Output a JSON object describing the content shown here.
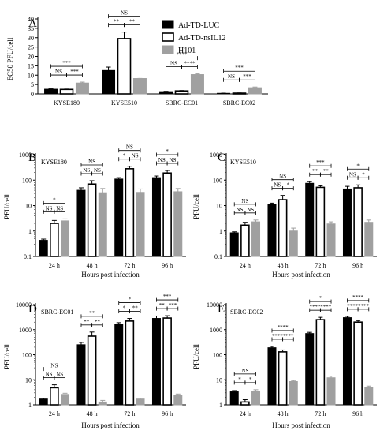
{
  "legend": [
    {
      "name": "Ad-TD-LUC",
      "color": "#000000"
    },
    {
      "name": "Ad-TD-nsIL12",
      "color": "#ffffff"
    },
    {
      "name": "H101",
      "color": "#a0a0a0"
    }
  ],
  "chart_data": [
    {
      "panel": "A",
      "type": "bar",
      "scale": "linear",
      "ylabel": "EC50 PFU/cell",
      "xlabel": "",
      "ylim": [
        0,
        40
      ],
      "yticks": [
        "0",
        "5",
        "10",
        "15",
        "20",
        "25",
        "30",
        "35",
        "40"
      ],
      "categories": [
        "KYSE180",
        "KYSE510",
        "SBRC-EC01",
        "SBRC-EC02"
      ],
      "series": [
        {
          "name": "Ad-TD-LUC",
          "values": [
            2.5,
            12.5,
            1.2,
            0.3
          ],
          "errors": [
            0.2,
            1.8,
            0.2,
            0.1
          ]
        },
        {
          "name": "Ad-TD-nsIL12",
          "values": [
            2.4,
            29.5,
            1.6,
            0.4
          ],
          "errors": [
            0.2,
            3.5,
            0.2,
            0.1
          ]
        },
        {
          "name": "H101",
          "values": [
            5.8,
            8.2,
            10.3,
            3.3
          ],
          "errors": [
            0.5,
            0.8,
            0.4,
            0.4
          ]
        }
      ],
      "sig_labels": [
        "***",
        "NS",
        "***",
        "NS",
        "**",
        "**",
        "****",
        "NS",
        "****",
        "***",
        "NS",
        "***"
      ]
    },
    {
      "panel": "B",
      "type": "bar",
      "scale": "log",
      "inset_title": "KYSE180",
      "ylabel": "PFU/cell",
      "xlabel": "Hours post infection",
      "ylim": [
        0.1,
        1000
      ],
      "yticks": [
        "0.1",
        "1",
        "10",
        "100",
        "1000"
      ],
      "categories": [
        "24 h",
        "48 h",
        "72 h",
        "96 h"
      ],
      "series": [
        {
          "name": "Ad-TD-LUC",
          "values": [
            0.43,
            40,
            110,
            125
          ],
          "errors": [
            0.05,
            10,
            15,
            20
          ]
        },
        {
          "name": "Ad-TD-nsIL12",
          "values": [
            2,
            70,
            280,
            190
          ],
          "errors": [
            0.6,
            25,
            70,
            50
          ]
        },
        {
          "name": "H101",
          "values": [
            2.5,
            32,
            33,
            35
          ],
          "errors": [
            0.5,
            15,
            12,
            12
          ]
        }
      ],
      "sig_labels": [
        "*",
        "NS",
        "NS",
        "NS",
        "NS",
        "NS",
        "NS",
        "*",
        "NS",
        "*",
        "NS",
        "NS"
      ]
    },
    {
      "panel": "C",
      "type": "bar",
      "scale": "log",
      "inset_title": "KYSE510",
      "ylabel": "PFU/cell",
      "xlabel": "Hours post infection",
      "ylim": [
        0.1,
        1000
      ],
      "yticks": [
        "0.1",
        "1",
        "10",
        "100",
        "1000"
      ],
      "categories": [
        "24 h",
        "48 h",
        "72 h",
        "96 h"
      ],
      "series": [
        {
          "name": "Ad-TD-LUC",
          "values": [
            0.85,
            11,
            75,
            45
          ],
          "errors": [
            0.08,
            1.5,
            12,
            12
          ]
        },
        {
          "name": "Ad-TD-nsIL12",
          "values": [
            1.7,
            17,
            52,
            50
          ],
          "errors": [
            0.5,
            8,
            8,
            15
          ]
        },
        {
          "name": "H101",
          "values": [
            2.3,
            1.0,
            1.9,
            2.2
          ],
          "errors": [
            0.4,
            0.3,
            0.4,
            0.5
          ]
        }
      ],
      "sig_labels": [
        "NS",
        "NS",
        "NS",
        "NS",
        "NS",
        "*",
        "***",
        "**",
        "**",
        "*",
        "NS",
        "*"
      ]
    },
    {
      "panel": "D",
      "type": "bar",
      "scale": "log",
      "inset_title": "SBRC-EC01",
      "ylabel": "PFU/cell",
      "xlabel": "Hours post infection",
      "ylim": [
        1,
        10000
      ],
      "yticks": [
        "1",
        "10",
        "100",
        "1000",
        "10000"
      ],
      "categories": [
        "24 h",
        "48 h",
        "72 h",
        "96 h"
      ],
      "series": [
        {
          "name": "Ad-TD-LUC",
          "values": [
            1.7,
            250,
            1600,
            2800
          ],
          "errors": [
            0.15,
            60,
            300,
            700
          ]
        },
        {
          "name": "Ad-TD-nsIL12",
          "values": [
            4.8,
            550,
            2200,
            2900
          ],
          "errors": [
            1.5,
            250,
            600,
            700
          ]
        },
        {
          "name": "H101",
          "values": [
            2.6,
            1.3,
            1.7,
            2.4
          ],
          "errors": [
            0.3,
            0.2,
            0.15,
            0.3
          ]
        }
      ],
      "sig_labels": [
        "NS",
        "NS",
        "NS",
        "**",
        "**",
        "**",
        "*",
        "*",
        "**",
        "***",
        "**",
        "***"
      ]
    },
    {
      "panel": "E",
      "type": "bar",
      "scale": "log",
      "inset_title": "SBRC-EC02",
      "ylabel": "PFU/cell",
      "xlabel": "Hours post infection",
      "ylim": [
        1,
        10000
      ],
      "yticks": [
        "1",
        "10",
        "100",
        "1000",
        "10000"
      ],
      "categories": [
        "24 h",
        "48 h",
        "72 h",
        "96 h"
      ],
      "series": [
        {
          "name": "Ad-TD-LUC",
          "values": [
            3.3,
            190,
            700,
            3000
          ],
          "errors": [
            0.4,
            25,
            80,
            400
          ]
        },
        {
          "name": "Ad-TD-nsIL12",
          "values": [
            1.3,
            130,
            2500,
            2000
          ],
          "errors": [
            0.3,
            25,
            600,
            300
          ]
        },
        {
          "name": "H101",
          "values": [
            3.5,
            8.5,
            12,
            4.8
          ],
          "errors": [
            0.5,
            0.8,
            2,
            0.8
          ]
        }
      ],
      "sig_labels": [
        "NS",
        "*",
        "*",
        "****",
        "****",
        "****",
        "*",
        "****",
        "****",
        "****",
        "****",
        "****"
      ]
    }
  ]
}
